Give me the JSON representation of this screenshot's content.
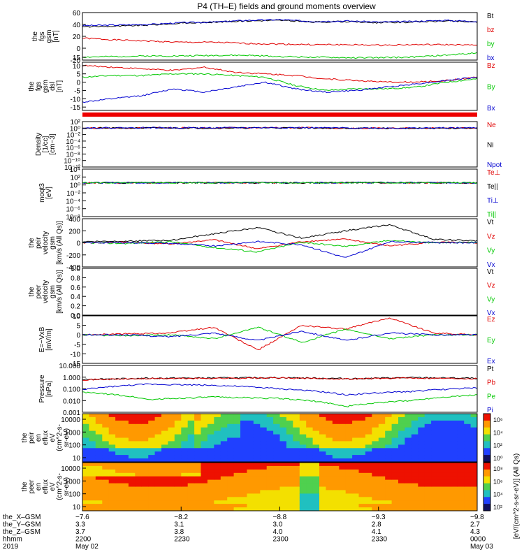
{
  "title": "P4 (TH–E) fields and ground moments overview",
  "colors": {
    "black": "#000000",
    "red": "#e00000",
    "green": "#00c800",
    "blue": "#0000d0",
    "frame": "#000000"
  },
  "chart_data": [
    {
      "type": "line",
      "ylabel": [
        "the",
        "fgs",
        "gsm",
        "[nT]"
      ],
      "ylim": [
        -20,
        60
      ],
      "ticks": [
        -20,
        0,
        20,
        40,
        60
      ],
      "series": [
        {
          "name": "Bt",
          "color": "black",
          "values": [
            36,
            37,
            39,
            42,
            44,
            46,
            47,
            44,
            45,
            43,
            44,
            46,
            44
          ]
        },
        {
          "name": "bz",
          "color": "red",
          "values": [
            17,
            14,
            12,
            10,
            10,
            8,
            7,
            6,
            6,
            5,
            6,
            6,
            5
          ]
        },
        {
          "name": "by",
          "color": "green",
          "values": [
            -15,
            -14,
            -13,
            -13,
            -12,
            -12,
            -14,
            -15,
            -16,
            -16,
            -15,
            -12,
            -8
          ]
        },
        {
          "name": "bx",
          "color": "blue",
          "values": [
            38,
            39,
            40,
            43,
            44,
            47,
            48,
            45,
            46,
            44,
            45,
            47,
            45
          ]
        }
      ]
    },
    {
      "type": "line",
      "ylabel": [
        "the",
        "fgs",
        "gsm",
        "dsl",
        "[nT]"
      ],
      "ylim": [
        -17,
        12
      ],
      "ticks": [
        -15,
        -10,
        -5,
        0,
        5,
        10,
        15
      ],
      "series": [
        {
          "name": "Bz",
          "color": "red",
          "values": [
            10,
            9,
            8,
            7,
            9,
            6,
            5,
            4,
            2,
            1,
            0,
            0,
            1,
            3
          ]
        },
        {
          "name": "By",
          "color": "green",
          "values": [
            3,
            4,
            4,
            5,
            5,
            4,
            3,
            -2,
            -5,
            -4,
            -4,
            -3,
            0,
            2
          ]
        },
        {
          "name": "Bx",
          "color": "blue",
          "values": [
            -12,
            -10,
            -8,
            -4,
            -6,
            -3,
            0,
            -4,
            -6,
            -5,
            -3,
            -1,
            1,
            3
          ]
        }
      ]
    },
    {
      "type": "line",
      "ylabel": [
        "Density",
        "[1/cc]",
        "[cm−3]"
      ],
      "ylim_log": [
        -12,
        2
      ],
      "ticks": [
        "10²",
        "10⁰",
        "10⁻²",
        "10⁻⁴",
        "10⁻⁶",
        "10⁻⁸",
        "10⁻¹⁰",
        "10⁻¹²"
      ],
      "series": [
        {
          "name": "Ne",
          "color": "red",
          "values": [
            1.0,
            1.2,
            1.1,
            1.3,
            1.0,
            0.9,
            1.1
          ]
        },
        {
          "name": "Ni",
          "color": "black",
          "values": [
            0.9,
            1.1,
            1.0,
            1.2,
            0.9,
            0.8,
            1.0
          ]
        },
        {
          "name": "Npot",
          "color": "blue",
          "values": [
            1.1,
            1.3,
            1.2,
            1.4,
            1.1,
            1.0,
            1.2
          ]
        }
      ]
    },
    {
      "type": "line",
      "ylabel": [
        "moqt3",
        "[eV]"
      ],
      "ylim_log": [
        -8,
        4
      ],
      "ticks": [
        "10⁴",
        "10²",
        "10⁰",
        "10⁻²",
        "10⁻⁴",
        "10⁻⁶",
        "10⁻⁸"
      ],
      "series": [
        {
          "name": "Te⊥",
          "color": "red",
          "values": [
            3.3,
            3.4,
            3.5,
            3.4,
            3.6,
            3.5,
            3.4
          ]
        },
        {
          "name": "Te||",
          "color": "black",
          "values": [
            3.4,
            3.5,
            3.6,
            3.5,
            3.7,
            3.6,
            3.5
          ]
        },
        {
          "name": "Ti⊥",
          "color": "blue",
          "values": [
            3.6,
            3.7,
            3.8,
            3.7,
            3.9,
            3.8,
            3.7
          ]
        },
        {
          "name": "Ti||",
          "color": "green",
          "values": [
            3.5,
            3.6,
            3.7,
            3.6,
            3.8,
            3.7,
            3.6
          ]
        }
      ]
    },
    {
      "type": "line",
      "ylabel": [
        "the",
        "peir",
        "velocity",
        "gsm",
        "[km/s (All Qs)]"
      ],
      "ylim": [
        -400,
        400
      ],
      "ticks": [
        -400,
        -200,
        0,
        200,
        400
      ],
      "series": [
        {
          "name": "Vt",
          "color": "black",
          "values": [
            20,
            30,
            40,
            150,
            250,
            80,
            200,
            300,
            60,
            30
          ]
        },
        {
          "name": "Vz",
          "color": "red",
          "values": [
            0,
            10,
            -20,
            50,
            -100,
            20,
            60,
            -50,
            10,
            0
          ]
        },
        {
          "name": "Vy",
          "color": "green",
          "values": [
            0,
            -10,
            20,
            -80,
            -150,
            10,
            -60,
            40,
            0,
            10
          ]
        },
        {
          "name": "Vx",
          "color": "blue",
          "values": [
            0,
            5,
            -10,
            -50,
            20,
            -30,
            -250,
            20,
            5,
            0
          ]
        }
      ]
    },
    {
      "type": "line",
      "ylabel": [
        "the",
        "peer",
        "velocity",
        "gsm",
        "[km/s (All Qs)]"
      ],
      "ylim": [
        0,
        1
      ],
      "ticks": [
        "1.0",
        "0.8",
        "0.6",
        "0.4",
        "0.2",
        "0.0"
      ],
      "series": [
        {
          "name": "Vt",
          "color": "black",
          "values": []
        },
        {
          "name": "Vz",
          "color": "red",
          "values": []
        },
        {
          "name": "Vy",
          "color": "green",
          "values": []
        },
        {
          "name": "Vx",
          "color": "blue",
          "values": []
        }
      ]
    },
    {
      "type": "line",
      "ylabel": [
        "E=−VxB",
        "[mV/m]"
      ],
      "ylim": [
        -15,
        10
      ],
      "ticks": [
        -15,
        -10,
        -5,
        0,
        5,
        10
      ],
      "series": [
        {
          "name": "Ez",
          "color": "red",
          "values": [
            0,
            0.5,
            1,
            4,
            -8,
            5,
            3,
            9,
            1,
            0
          ]
        },
        {
          "name": "Ey",
          "color": "green",
          "values": [
            0,
            -0.5,
            0,
            -2,
            4,
            -4,
            3,
            -2,
            0,
            0
          ]
        },
        {
          "name": "Ex",
          "color": "blue",
          "values": [
            0,
            0,
            -1,
            1,
            -3,
            2,
            -3,
            1,
            0,
            0
          ]
        }
      ]
    },
    {
      "type": "line",
      "ylabel": [
        "Pressure",
        "[nPa]"
      ],
      "ylim_log": [
        -3,
        1
      ],
      "ticks": [
        "10.000",
        "1.000",
        "0.100",
        "0.010",
        "0.001"
      ],
      "series": [
        {
          "name": "Pt",
          "color": "black",
          "values": [
            0.65,
            0.8,
            0.85,
            0.9,
            0.75,
            0.9,
            0.8
          ]
        },
        {
          "name": "Pb",
          "color": "red",
          "values": [
            0.6,
            0.75,
            0.8,
            0.85,
            0.7,
            0.85,
            0.75
          ]
        },
        {
          "name": "Pe",
          "color": "green",
          "values": [
            0.05,
            0.012,
            0.02,
            0.015,
            0.003,
            0.01,
            0.03
          ]
        },
        {
          "name": "Pi",
          "color": "blue",
          "values": [
            0.08,
            0.25,
            0.2,
            0.1,
            0.03,
            0.06,
            0.12
          ]
        }
      ]
    },
    {
      "type": "heatmap",
      "ylabel": [
        "the",
        "peir",
        "en",
        "eflux",
        "eV",
        "(cm^2-s-",
        "sr-eV)"
      ],
      "ticks": [
        "10000",
        "1000",
        "100",
        "10"
      ],
      "colorbar_ticks": [
        "10⁶",
        "10⁴",
        "10²",
        "10⁰"
      ]
    },
    {
      "type": "heatmap",
      "ylabel": [
        "the",
        "peer",
        "en",
        "eflux",
        "eV",
        "(cm^2-s-",
        "sr-eV)"
      ],
      "ticks": [
        "10000",
        "1000",
        "100",
        "10"
      ],
      "colorbar_ticks": [
        "10⁸",
        "10⁶",
        "10⁴",
        "10²"
      ],
      "colorbar_label": "[eV/(cm^2-s-sr-eV)] (All Qs)"
    }
  ],
  "xaxis": {
    "row_labels": [
      "the_X–GSM",
      "the_Y–GSM",
      "the_Z–GSM",
      "hhmm",
      "2019"
    ],
    "columns": [
      [
        "−7.6",
        "3.3",
        "3.7",
        "2200",
        "May 02"
      ],
      [
        "−8.2",
        "3.1",
        "3.8",
        "2230",
        ""
      ],
      [
        "−8.8",
        "3.0",
        "4.0",
        "2300",
        ""
      ],
      [
        "−9.3",
        "2.8",
        "4.1",
        "2330",
        ""
      ],
      [
        "−9.8",
        "2.7",
        "4.3",
        "0000",
        "May 03"
      ]
    ]
  }
}
